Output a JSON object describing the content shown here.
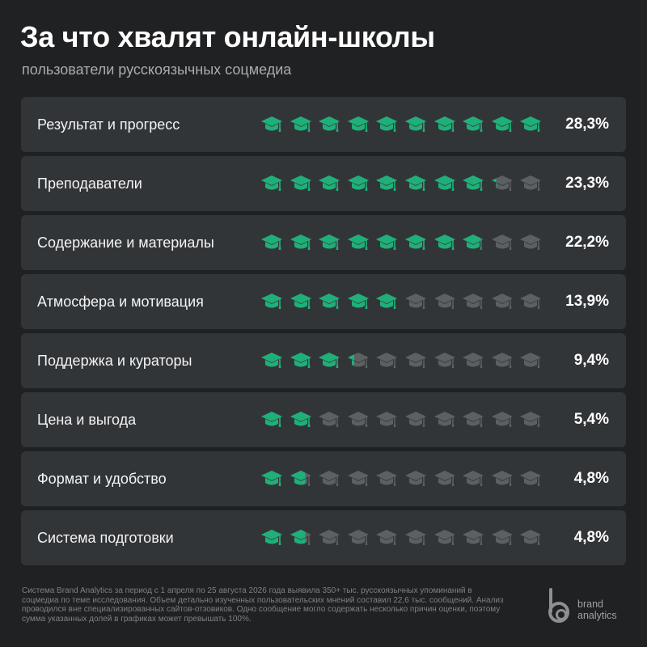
{
  "header": {
    "title": "За что хвалят онлайн-школы",
    "subtitle": "пользователи русскоязычных соцмедиа"
  },
  "colors": {
    "accent": "#1fb079",
    "inactive": "#5d6063",
    "card": "#323538",
    "background": "#1f2123"
  },
  "icon": "graduation-cap-icon",
  "chart_data": {
    "type": "bar",
    "icons_per_row": 10,
    "icon_unit_percent": 2.83,
    "categories": [
      "Результат и прогресс",
      "Преподаватели",
      "Содержание и материалы",
      "Атмосфера и мотивация",
      "Поддержка и кураторы",
      "Цена и выгода",
      "Формат и удобство",
      "Система подготовки"
    ],
    "values": [
      28.3,
      23.3,
      22.2,
      13.9,
      9.4,
      5.4,
      4.8,
      4.8
    ],
    "value_labels": [
      "28,3%",
      "23,3%",
      "22,2%",
      "13,9%",
      "9,4%",
      "5,4%",
      "4,8%",
      "4,8%"
    ]
  },
  "footer": {
    "note": "Система Brand Analytics за период с 1 апреля по 25 августа 2026 года выявила 350+ тыс. русскоязычных упоминаний в соцмедиа по теме исследования. Объем детально изученных пользовательских мнений составил 22,6 тыс. сообщений. Анализ проводился вне специализированных сайтов-отзовиков. Одно сообщение могло содержать несколько причин оценки, поэтому сумма указанных долей в графиках может превышать 100%.",
    "brand_line1": "brand",
    "brand_line2": "analytics"
  }
}
